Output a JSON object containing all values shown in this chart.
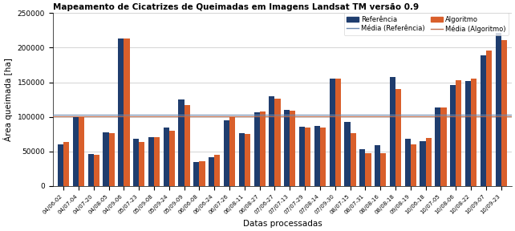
{
  "title": "Mapeamento de Cicatrizes de Queimadas em Imagens Landsat TM versão 0.9",
  "xlabel": "Datas processadas",
  "ylabel": "Área queimada [ha]",
  "categories": [
    "04/06-02",
    "04/07-04",
    "04/07-20",
    "04/08-05",
    "04/09-06",
    "05/07-23",
    "05/09-08",
    "05/09-24",
    "05/09-09",
    "06/06-08",
    "06/06-24",
    "06/07-26",
    "06/08-11",
    "06/08-27",
    "07/06-27",
    "07/07-13",
    "07/07-29",
    "07/08-14",
    "07/09-30",
    "08/07-15",
    "08/07-31",
    "08/08-16",
    "08/08-18",
    "09/08-19",
    "10/06-18",
    "10/07-05",
    "10/08-06",
    "10/08-22",
    "10/09-07",
    "10/09-23"
  ],
  "ref_values": [
    60000,
    99000,
    46000,
    78000,
    213000,
    68000,
    71000,
    85000,
    125000,
    35000,
    42000,
    95000,
    76000,
    106000,
    130000,
    110000,
    86000,
    87000,
    155000,
    92000,
    53000,
    59000,
    158000,
    68000,
    65000,
    114000,
    146000,
    152000,
    189000,
    221000
  ],
  "alg_values": [
    63000,
    101000,
    45000,
    76000,
    213000,
    63000,
    70000,
    80000,
    117000,
    36000,
    45000,
    99000,
    75000,
    108000,
    126000,
    109000,
    85000,
    85000,
    155000,
    76000,
    47000,
    47000,
    140000,
    60000,
    69000,
    113000,
    153000,
    155000,
    196000,
    211000
  ],
  "ref_color": "#1f3d6e",
  "alg_color": "#d95f2b",
  "ref_mean_color": "#6e8ab0",
  "alg_mean_color": "#c07050",
  "ylim": [
    0,
    250000
  ],
  "yticks": [
    0,
    50000,
    100000,
    150000,
    200000,
    250000
  ],
  "bar_width": 0.38,
  "figsize": [
    6.42,
    2.88
  ],
  "dpi": 100
}
